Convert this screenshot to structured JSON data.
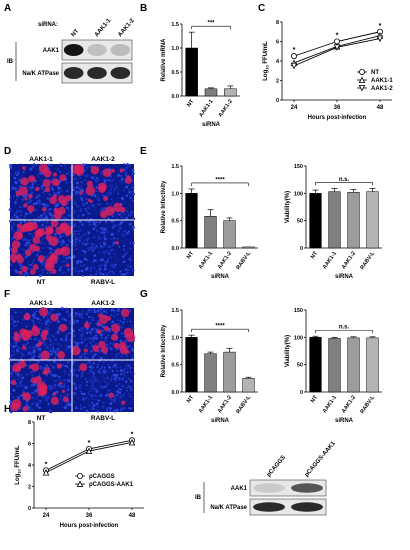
{
  "panels": {
    "A": {
      "letter": "A",
      "header": "siRNA:",
      "lanes": [
        "NT",
        "AAK1-1",
        "AAK1-2"
      ],
      "side_label": "IB",
      "bands": [
        "AAK1",
        "Na/K ATPase"
      ],
      "aak1_intensity": [
        1.0,
        0.2,
        0.22
      ],
      "atpase_intensity": [
        0.9,
        0.9,
        0.9
      ]
    },
    "D": {
      "letter": "D",
      "top_labels": [
        "AAK1-1",
        "AAK1-2"
      ],
      "bottom_labels": [
        "NT",
        "RABV-L"
      ],
      "red_signal": [
        0.45,
        0.35,
        0.85,
        0.02
      ]
    },
    "F": {
      "letter": "F",
      "top_labels": [
        "AAK1-1",
        "AAK1-2"
      ],
      "bottom_labels": [
        "NT",
        "RABV-L"
      ],
      "red_signal": [
        0.35,
        0.35,
        0.45,
        0.05
      ]
    },
    "H_blot": {
      "lanes": [
        "pCAGGS",
        "pCAGGS-AAK1"
      ],
      "side_label": "IB",
      "bands": [
        "AAK1",
        "Na/K ATPase"
      ],
      "aak1_intensity": [
        0.15,
        0.7
      ],
      "atpase_intensity": [
        0.9,
        0.9
      ]
    }
  },
  "chart_data": [
    {
      "panel": "B",
      "type": "bar",
      "categories": [
        "NT",
        "AAK1-1",
        "AAK1-2"
      ],
      "values": [
        1.0,
        0.15,
        0.15
      ],
      "errors": [
        0.33,
        0.02,
        0.06
      ],
      "colors": [
        "#000000",
        "#808080",
        "#b4b4b4"
      ],
      "ylabel": "Relative mRNA",
      "xlabel": "siRNA",
      "ylim": [
        0,
        1.5
      ],
      "yticks": [
        "0.0",
        "0.5",
        "1.0",
        "1.5"
      ],
      "significance": "***"
    },
    {
      "panel": "C",
      "type": "line",
      "x": [
        24,
        36,
        48
      ],
      "xticks": [
        "24",
        "36",
        "48"
      ],
      "series": [
        {
          "name": "NT",
          "values": [
            4.5,
            6.0,
            7.0
          ],
          "marker": "circle"
        },
        {
          "name": "AAK1-1",
          "values": [
            3.8,
            5.5,
            6.6
          ],
          "marker": "triangle-up"
        },
        {
          "name": "AAK1-2",
          "values": [
            3.5,
            5.4,
            6.3
          ],
          "marker": "triangle-down"
        }
      ],
      "ylabel_main": "Log",
      "ylabel_sub": "10",
      "ylabel_tail": " FFU/mL",
      "xlabel": "Hours post-infection",
      "ylim": [
        0,
        8
      ],
      "yticks": [
        "0",
        "2",
        "4",
        "6",
        "8"
      ],
      "annotations": [
        "*",
        "*",
        "*"
      ]
    },
    {
      "panel": "E",
      "type": "bar",
      "categories": [
        "NT",
        "AAK1-1",
        "AAK1-2",
        "RABV-L"
      ],
      "values": [
        1.0,
        0.58,
        0.5,
        0.02
      ],
      "errors": [
        0.08,
        0.12,
        0.05,
        0.0
      ],
      "colors": [
        "#000000",
        "#808080",
        "#9c9c9c",
        "#b4b4b4"
      ],
      "ylabel": "Relative Infectivity",
      "xlabel": "siRNA",
      "ylim": [
        0,
        1.5
      ],
      "yticks": [
        "0.0",
        "0.5",
        "1.0",
        "1.5"
      ],
      "significance": "****"
    },
    {
      "panel": "E",
      "type": "bar",
      "categories": [
        "NT",
        "AAK1-1",
        "AAK1-2",
        "RABV-L"
      ],
      "values": [
        100,
        103,
        102,
        103
      ],
      "errors": [
        6,
        6,
        5,
        6
      ],
      "colors": [
        "#000000",
        "#808080",
        "#9c9c9c",
        "#b4b4b4"
      ],
      "ylabel": "Viability(%)",
      "xlabel": "siRNA",
      "ylim": [
        0,
        150
      ],
      "yticks": [
        "0",
        "50",
        "100",
        "150"
      ],
      "significance": "n.s."
    },
    {
      "panel": "G",
      "type": "bar",
      "categories": [
        "NT",
        "AAK1-1",
        "AAK1-2",
        "RABV-L"
      ],
      "values": [
        1.0,
        0.7,
        0.73,
        0.25
      ],
      "errors": [
        0.04,
        0.03,
        0.07,
        0.02
      ],
      "colors": [
        "#000000",
        "#808080",
        "#9c9c9c",
        "#b4b4b4"
      ],
      "ylabel": "Relative Infectivity",
      "xlabel": "siRNA",
      "ylim": [
        0,
        1.5
      ],
      "yticks": [
        "0.0",
        "0.5",
        "1.0",
        "1.5"
      ],
      "significance": "****"
    },
    {
      "panel": "G",
      "type": "bar",
      "categories": [
        "NT",
        "AAK1-1",
        "AAK1-2",
        "RABV-L"
      ],
      "values": [
        100,
        98,
        99,
        99
      ],
      "errors": [
        2,
        2,
        2,
        2
      ],
      "colors": [
        "#000000",
        "#808080",
        "#9c9c9c",
        "#b4b4b4"
      ],
      "ylabel": "Viability(%)",
      "xlabel": "siRNA",
      "ylim": [
        0,
        150
      ],
      "yticks": [
        "0",
        "50",
        "100",
        "150"
      ],
      "significance": "n.s."
    },
    {
      "panel": "H",
      "type": "line",
      "x": [
        24,
        36,
        48
      ],
      "xticks": [
        "24",
        "36",
        "48"
      ],
      "series": [
        {
          "name": "pCAGGS",
          "values": [
            3.5,
            5.5,
            6.3
          ],
          "marker": "circle"
        },
        {
          "name": "pCAGGS-AAK1",
          "values": [
            3.3,
            5.3,
            6.1
          ],
          "marker": "triangle-up"
        }
      ],
      "ylabel_main": "Log",
      "ylabel_sub": "10",
      "ylabel_tail": " FFU/mL",
      "xlabel": "Hours post-infection",
      "ylim": [
        0,
        8
      ],
      "yticks": [
        "0",
        "2",
        "4",
        "6",
        "8"
      ],
      "annotations": [
        "*",
        "*",
        "*"
      ]
    }
  ]
}
